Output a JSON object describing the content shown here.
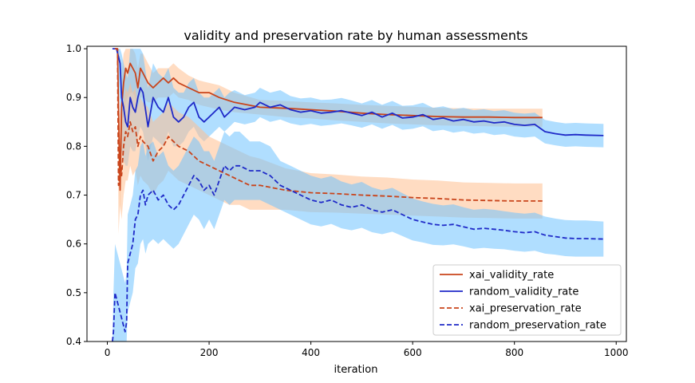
{
  "chart_data": {
    "type": "line",
    "title": "validity and preservation rate by human assessments",
    "xlabel": "iteration",
    "ylabel": "",
    "xlim": [
      -40,
      1020
    ],
    "ylim": [
      0.4,
      1.005
    ],
    "xticks": [
      0,
      200,
      400,
      600,
      800,
      1000
    ],
    "yticks": [
      0.4,
      0.5,
      0.6,
      0.7,
      0.8,
      0.9,
      1.0
    ],
    "grid": false,
    "legend_position": "bottom-right",
    "series": [
      {
        "name": "xai_validity_rate",
        "color": "#c9441b",
        "band_color": "#ffc08f",
        "linestyle": "solid",
        "x": [
          15,
          20,
          22,
          25,
          28,
          32,
          36,
          40,
          45,
          50,
          55,
          60,
          65,
          70,
          80,
          90,
          100,
          110,
          120,
          130,
          140,
          160,
          180,
          200,
          220,
          250,
          300,
          350,
          400,
          450,
          500,
          550,
          600,
          650,
          700,
          750,
          800,
          855
        ],
        "y": [
          1.0,
          1.0,
          0.88,
          0.71,
          0.88,
          0.93,
          0.96,
          0.95,
          0.97,
          0.96,
          0.95,
          0.92,
          0.96,
          0.95,
          0.93,
          0.92,
          0.93,
          0.94,
          0.93,
          0.94,
          0.93,
          0.92,
          0.91,
          0.91,
          0.9,
          0.89,
          0.88,
          0.878,
          0.875,
          0.872,
          0.868,
          0.865,
          0.863,
          0.861,
          0.86,
          0.86,
          0.859,
          0.859
        ],
        "lower": [
          1.0,
          1.0,
          0.8,
          0.66,
          0.8,
          0.86,
          0.89,
          0.9,
          0.91,
          0.91,
          0.9,
          0.88,
          0.9,
          0.9,
          0.89,
          0.89,
          0.9,
          0.9,
          0.9,
          0.91,
          0.9,
          0.895,
          0.885,
          0.88,
          0.875,
          0.87,
          0.865,
          0.86,
          0.857,
          0.853,
          0.85,
          0.847,
          0.845,
          0.843,
          0.842,
          0.841,
          0.84,
          0.84
        ],
        "upper": [
          1.0,
          1.0,
          0.96,
          0.8,
          0.95,
          0.99,
          1.0,
          1.0,
          1.0,
          1.0,
          0.99,
          0.96,
          0.99,
          0.99,
          0.97,
          0.95,
          0.96,
          0.96,
          0.96,
          0.97,
          0.96,
          0.945,
          0.935,
          0.93,
          0.925,
          0.91,
          0.895,
          0.893,
          0.89,
          0.888,
          0.885,
          0.883,
          0.881,
          0.879,
          0.878,
          0.877,
          0.877,
          0.877
        ]
      },
      {
        "name": "random_validity_rate",
        "color": "#1f2ac8",
        "band_color": "#6fc3ff",
        "linestyle": "solid",
        "x": [
          10,
          18,
          25,
          28,
          32,
          36,
          40,
          45,
          50,
          55,
          60,
          65,
          70,
          80,
          90,
          100,
          110,
          120,
          130,
          140,
          150,
          160,
          170,
          180,
          190,
          200,
          210,
          220,
          230,
          240,
          250,
          270,
          290,
          300,
          320,
          340,
          360,
          380,
          400,
          420,
          440,
          460,
          480,
          500,
          520,
          540,
          560,
          580,
          600,
          620,
          640,
          660,
          680,
          700,
          720,
          740,
          760,
          780,
          800,
          820,
          840,
          860,
          880,
          900,
          920,
          940,
          975
        ],
        "y": [
          1.0,
          1.0,
          0.97,
          0.9,
          0.88,
          0.85,
          0.84,
          0.9,
          0.88,
          0.87,
          0.9,
          0.92,
          0.91,
          0.84,
          0.9,
          0.88,
          0.87,
          0.9,
          0.86,
          0.85,
          0.86,
          0.88,
          0.89,
          0.86,
          0.85,
          0.86,
          0.87,
          0.88,
          0.86,
          0.87,
          0.88,
          0.875,
          0.88,
          0.89,
          0.88,
          0.885,
          0.875,
          0.87,
          0.873,
          0.868,
          0.87,
          0.873,
          0.868,
          0.863,
          0.87,
          0.86,
          0.868,
          0.858,
          0.86,
          0.865,
          0.855,
          0.858,
          0.852,
          0.855,
          0.85,
          0.852,
          0.848,
          0.85,
          0.845,
          0.843,
          0.845,
          0.83,
          0.826,
          0.823,
          0.824,
          0.823,
          0.822
        ],
        "lower": [
          1.0,
          1.0,
          0.88,
          0.79,
          0.77,
          0.76,
          0.76,
          0.8,
          0.79,
          0.79,
          0.82,
          0.84,
          0.83,
          0.77,
          0.82,
          0.81,
          0.8,
          0.83,
          0.8,
          0.8,
          0.81,
          0.83,
          0.84,
          0.82,
          0.81,
          0.82,
          0.83,
          0.84,
          0.83,
          0.84,
          0.85,
          0.845,
          0.85,
          0.86,
          0.85,
          0.855,
          0.847,
          0.843,
          0.846,
          0.842,
          0.844,
          0.847,
          0.843,
          0.838,
          0.845,
          0.836,
          0.844,
          0.834,
          0.836,
          0.841,
          0.831,
          0.834,
          0.828,
          0.831,
          0.826,
          0.828,
          0.823,
          0.825,
          0.82,
          0.818,
          0.82,
          0.806,
          0.802,
          0.799,
          0.8,
          0.799,
          0.798
        ],
        "upper": [
          1.0,
          1.0,
          1.0,
          0.99,
          0.97,
          0.95,
          0.94,
          1.0,
          1.0,
          1.0,
          1.0,
          1.0,
          0.99,
          0.92,
          0.97,
          0.95,
          0.94,
          0.96,
          0.92,
          0.91,
          0.91,
          0.93,
          0.94,
          0.91,
          0.9,
          0.9,
          0.91,
          0.92,
          0.9,
          0.91,
          0.915,
          0.905,
          0.91,
          0.92,
          0.91,
          0.915,
          0.903,
          0.898,
          0.9,
          0.895,
          0.896,
          0.899,
          0.894,
          0.888,
          0.895,
          0.885,
          0.893,
          0.883,
          0.884,
          0.889,
          0.879,
          0.882,
          0.876,
          0.879,
          0.874,
          0.876,
          0.872,
          0.874,
          0.869,
          0.867,
          0.869,
          0.854,
          0.85,
          0.847,
          0.848,
          0.847,
          0.846
        ]
      },
      {
        "name": "xai_preservation_rate",
        "color": "#c9441b",
        "band_color": "#ffc08f",
        "linestyle": "dashed",
        "x": [
          15,
          20,
          22,
          25,
          28,
          32,
          36,
          40,
          45,
          50,
          55,
          60,
          65,
          70,
          80,
          90,
          100,
          110,
          120,
          130,
          140,
          160,
          180,
          200,
          220,
          240,
          260,
          280,
          300,
          350,
          400,
          450,
          500,
          550,
          600,
          650,
          700,
          750,
          800,
          855
        ],
        "y": [
          1.0,
          1.0,
          0.72,
          0.78,
          0.74,
          0.8,
          0.83,
          0.82,
          0.85,
          0.83,
          0.84,
          0.8,
          0.82,
          0.81,
          0.8,
          0.77,
          0.79,
          0.8,
          0.82,
          0.81,
          0.8,
          0.79,
          0.77,
          0.76,
          0.75,
          0.74,
          0.73,
          0.72,
          0.72,
          0.71,
          0.705,
          0.703,
          0.7,
          0.698,
          0.695,
          0.693,
          0.69,
          0.689,
          0.688,
          0.688
        ],
        "lower": [
          1.0,
          1.0,
          0.62,
          0.68,
          0.65,
          0.7,
          0.73,
          0.73,
          0.76,
          0.74,
          0.75,
          0.72,
          0.74,
          0.73,
          0.72,
          0.7,
          0.72,
          0.73,
          0.75,
          0.74,
          0.73,
          0.72,
          0.71,
          0.7,
          0.69,
          0.68,
          0.68,
          0.67,
          0.67,
          0.67,
          0.665,
          0.664,
          0.662,
          0.66,
          0.658,
          0.656,
          0.654,
          0.653,
          0.652,
          0.652
        ],
        "upper": [
          1.0,
          1.0,
          0.82,
          0.88,
          0.84,
          0.89,
          0.92,
          0.91,
          0.93,
          0.91,
          0.92,
          0.88,
          0.9,
          0.89,
          0.88,
          0.85,
          0.86,
          0.87,
          0.89,
          0.88,
          0.87,
          0.86,
          0.84,
          0.82,
          0.81,
          0.8,
          0.79,
          0.78,
          0.775,
          0.755,
          0.745,
          0.742,
          0.738,
          0.736,
          0.732,
          0.73,
          0.726,
          0.725,
          0.724,
          0.724
        ]
      },
      {
        "name": "random_preservation_rate",
        "color": "#1f2ac8",
        "band_color": "#6fc3ff",
        "linestyle": "dashed",
        "x": [
          10,
          12,
          15,
          20,
          25,
          30,
          35,
          38,
          40,
          45,
          50,
          55,
          60,
          65,
          70,
          75,
          80,
          90,
          100,
          110,
          120,
          130,
          140,
          150,
          160,
          170,
          180,
          190,
          200,
          210,
          220,
          230,
          240,
          250,
          260,
          280,
          300,
          320,
          340,
          360,
          380,
          400,
          420,
          440,
          460,
          480,
          500,
          520,
          540,
          560,
          580,
          600,
          620,
          640,
          660,
          680,
          700,
          720,
          740,
          760,
          780,
          800,
          820,
          840,
          860,
          880,
          900,
          920,
          940,
          975
        ],
        "y": [
          0.4,
          0.42,
          0.5,
          0.48,
          0.46,
          0.44,
          0.42,
          0.44,
          0.56,
          0.58,
          0.6,
          0.65,
          0.66,
          0.7,
          0.71,
          0.68,
          0.7,
          0.71,
          0.69,
          0.7,
          0.68,
          0.67,
          0.68,
          0.7,
          0.72,
          0.74,
          0.73,
          0.71,
          0.72,
          0.7,
          0.73,
          0.76,
          0.75,
          0.76,
          0.76,
          0.75,
          0.75,
          0.74,
          0.72,
          0.71,
          0.7,
          0.69,
          0.685,
          0.69,
          0.68,
          0.675,
          0.68,
          0.67,
          0.665,
          0.67,
          0.66,
          0.65,
          0.645,
          0.64,
          0.638,
          0.64,
          0.635,
          0.63,
          0.632,
          0.63,
          0.628,
          0.625,
          0.623,
          0.625,
          0.618,
          0.615,
          0.612,
          0.611,
          0.611,
          0.61
        ],
        "lower": [
          0.4,
          0.4,
          0.4,
          0.4,
          0.4,
          0.4,
          0.4,
          0.4,
          0.46,
          0.48,
          0.5,
          0.55,
          0.56,
          0.6,
          0.61,
          0.58,
          0.6,
          0.61,
          0.6,
          0.61,
          0.6,
          0.59,
          0.6,
          0.62,
          0.64,
          0.66,
          0.65,
          0.63,
          0.65,
          0.63,
          0.66,
          0.69,
          0.68,
          0.69,
          0.69,
          0.69,
          0.69,
          0.68,
          0.67,
          0.66,
          0.65,
          0.64,
          0.636,
          0.641,
          0.632,
          0.628,
          0.633,
          0.624,
          0.62,
          0.625,
          0.616,
          0.607,
          0.603,
          0.598,
          0.597,
          0.599,
          0.595,
          0.59,
          0.592,
          0.59,
          0.589,
          0.586,
          0.584,
          0.586,
          0.58,
          0.578,
          0.575,
          0.574,
          0.574,
          0.574
        ],
        "upper": [
          0.4,
          0.5,
          0.6,
          0.58,
          0.56,
          0.54,
          0.52,
          0.54,
          0.66,
          0.68,
          0.7,
          0.75,
          0.76,
          0.8,
          0.81,
          0.78,
          0.8,
          0.81,
          0.78,
          0.79,
          0.76,
          0.75,
          0.76,
          0.78,
          0.8,
          0.82,
          0.81,
          0.79,
          0.79,
          0.77,
          0.8,
          0.83,
          0.82,
          0.83,
          0.83,
          0.81,
          0.81,
          0.8,
          0.77,
          0.76,
          0.75,
          0.74,
          0.734,
          0.739,
          0.728,
          0.722,
          0.727,
          0.716,
          0.71,
          0.715,
          0.704,
          0.693,
          0.687,
          0.682,
          0.679,
          0.681,
          0.675,
          0.67,
          0.672,
          0.67,
          0.667,
          0.664,
          0.662,
          0.664,
          0.656,
          0.652,
          0.649,
          0.648,
          0.648,
          0.646
        ]
      }
    ]
  }
}
